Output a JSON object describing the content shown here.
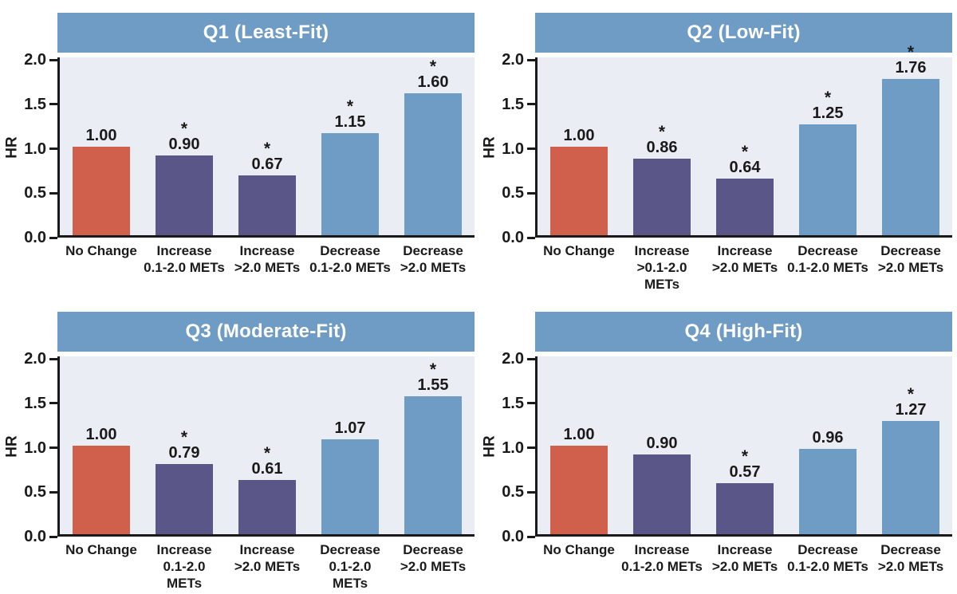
{
  "figure": {
    "sig_marker": "*",
    "colors": {
      "banner": "#6f9cc4",
      "no_change": "#d05f4b",
      "increase": "#5a5687",
      "decrease": "#6f9cc4",
      "plot_bg": "#eaeef4",
      "axis": "#1a1a1a",
      "title_text": "#ffffff",
      "label_text": "#1a1a1a"
    }
  },
  "chart_data": [
    {
      "type": "bar",
      "id": "q1",
      "title": "Q1 (Least-Fit)",
      "ylabel": "HR",
      "ylim": [
        0,
        2
      ],
      "yticks": [
        0,
        0.5,
        1,
        1.5,
        2
      ],
      "ytick_labels": [
        "0.0",
        "0.5",
        "1.0",
        "1.5",
        "2.0"
      ],
      "categories": [
        "No Change",
        "Increase 0.1-2.0 METs",
        "Increase >2.0 METs",
        "Decrease 0.1-2.0 METs",
        "Decrease >2.0 METs"
      ],
      "category_lines": [
        [
          "No Change"
        ],
        [
          "Increase",
          "0.1-2.0 METs"
        ],
        [
          "Increase",
          ">2.0 METs"
        ],
        [
          "Decrease",
          "0.1-2.0 METs"
        ],
        [
          "Decrease",
          ">2.0 METs"
        ]
      ],
      "values": [
        1.0,
        0.9,
        0.67,
        1.15,
        1.6
      ],
      "value_labels": [
        "1.00",
        "0.90",
        "0.67",
        "1.15",
        "1.60"
      ],
      "significant": [
        false,
        true,
        true,
        true,
        true
      ],
      "bar_colors": [
        "no_change",
        "increase",
        "increase",
        "decrease",
        "decrease"
      ]
    },
    {
      "type": "bar",
      "id": "q2",
      "title": "Q2 (Low-Fit)",
      "ylabel": "HR",
      "ylim": [
        0,
        2
      ],
      "yticks": [
        0,
        0.5,
        1,
        1.5,
        2
      ],
      "ytick_labels": [
        "0.0",
        "0.5",
        "1.0",
        "1.5",
        "2.0"
      ],
      "categories": [
        "No Change",
        "Increase >0.1-2.0 METs",
        "Increase >2.0 METs",
        "Decrease 0.1-2.0 METs",
        "Decrease >2.0 METs"
      ],
      "category_lines": [
        [
          "No Change"
        ],
        [
          "Increase",
          ">0.1-2.0",
          "METs"
        ],
        [
          "Increase",
          ">2.0 METs"
        ],
        [
          "Decrease",
          "0.1-2.0 METs"
        ],
        [
          "Decrease",
          ">2.0 METs"
        ]
      ],
      "values": [
        1.0,
        0.86,
        0.64,
        1.25,
        1.76
      ],
      "value_labels": [
        "1.00",
        "0.86",
        "0.64",
        "1.25",
        "1.76"
      ],
      "significant": [
        false,
        true,
        true,
        true,
        true
      ],
      "bar_colors": [
        "no_change",
        "increase",
        "increase",
        "decrease",
        "decrease"
      ]
    },
    {
      "type": "bar",
      "id": "q3",
      "title": "Q3 (Moderate-Fit)",
      "ylabel": "HR",
      "ylim": [
        0,
        2
      ],
      "yticks": [
        0,
        0.5,
        1,
        1.5,
        2
      ],
      "ytick_labels": [
        "0.0",
        "0.5",
        "1.0",
        "1.5",
        "2.0"
      ],
      "categories": [
        "No Change",
        "Increase 0.1-2.0 METs",
        "Increase >2.0 METs",
        "Decrease 0.1-2.0 METs",
        "Decrease >2.0 METs"
      ],
      "category_lines": [
        [
          "No Change"
        ],
        [
          "Increase",
          "0.1-2.0",
          "METs"
        ],
        [
          "Increase",
          ">2.0 METs"
        ],
        [
          "Decrease",
          "0.1-2.0",
          "METs"
        ],
        [
          "Decrease",
          ">2.0 METs"
        ]
      ],
      "values": [
        1.0,
        0.79,
        0.61,
        1.07,
        1.55
      ],
      "value_labels": [
        "1.00",
        "0.79",
        "0.61",
        "1.07",
        "1.55"
      ],
      "significant": [
        false,
        true,
        true,
        false,
        true
      ],
      "bar_colors": [
        "no_change",
        "increase",
        "increase",
        "decrease",
        "decrease"
      ]
    },
    {
      "type": "bar",
      "id": "q4",
      "title": "Q4 (High-Fit)",
      "ylabel": "HR",
      "ylim": [
        0,
        2
      ],
      "yticks": [
        0,
        0.5,
        1,
        1.5,
        2
      ],
      "ytick_labels": [
        "0.0",
        "0.5",
        "1.0",
        "1.5",
        "2.0"
      ],
      "categories": [
        "No Change",
        "Increase 0.1-2.0 METs",
        "Increase >2.0 METs",
        "Decrease 0.1-2.0 METs",
        "Decrease >2.0 METs"
      ],
      "category_lines": [
        [
          "No Change"
        ],
        [
          "Increase",
          "0.1-2.0 METs"
        ],
        [
          "Increase",
          ">2.0 METs"
        ],
        [
          "Decrease",
          "0.1-2.0 METs"
        ],
        [
          "Decrease",
          ">2.0 METs"
        ]
      ],
      "values": [
        1.0,
        0.9,
        0.57,
        0.96,
        1.27
      ],
      "value_labels": [
        "1.00",
        "0.90",
        "0.57",
        "0.96",
        "1.27"
      ],
      "significant": [
        false,
        false,
        true,
        false,
        true
      ],
      "bar_colors": [
        "no_change",
        "increase",
        "increase",
        "decrease",
        "decrease"
      ]
    }
  ]
}
